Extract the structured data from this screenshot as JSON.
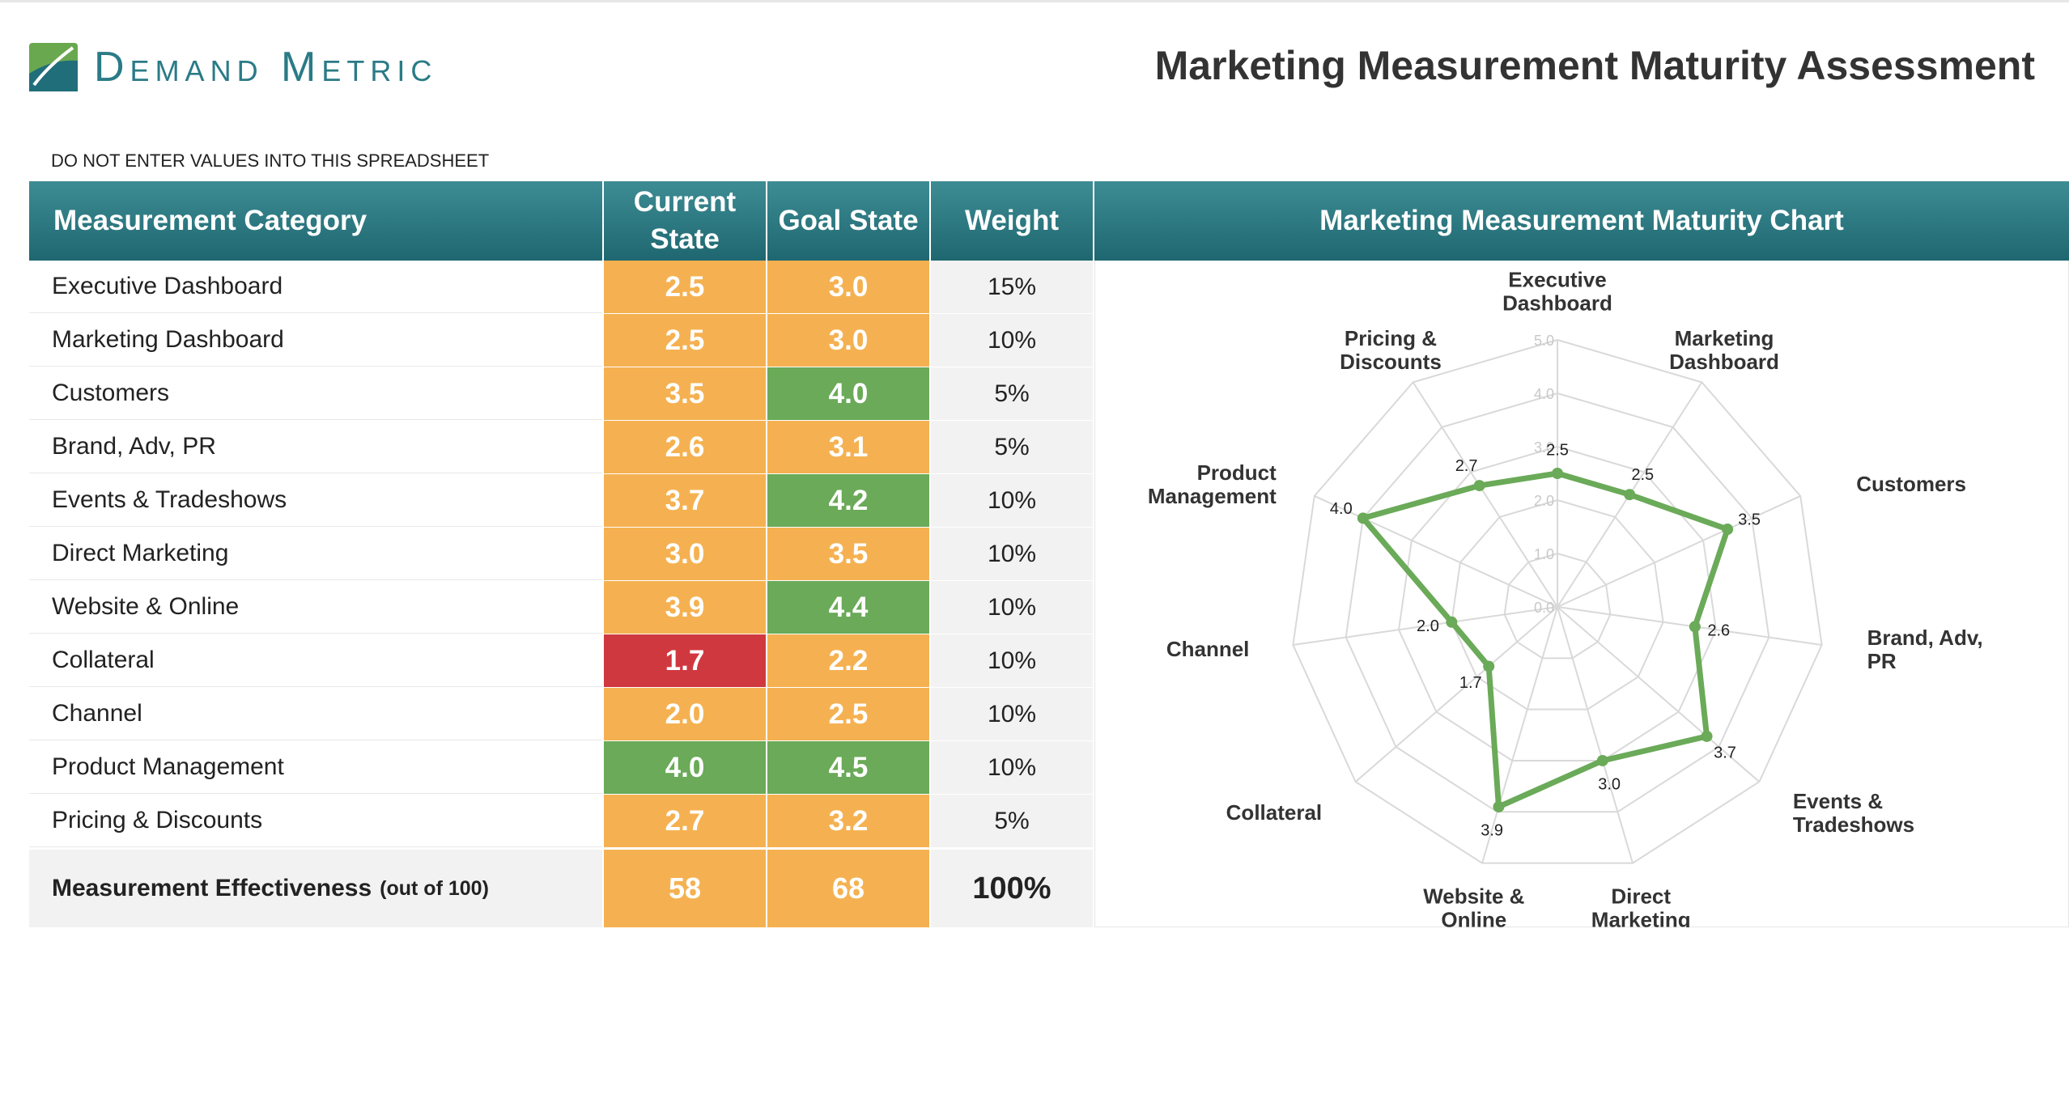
{
  "header": {
    "logo_text": "Demand Metric",
    "title": "Marketing Measurement Maturity Assessment",
    "notice": "DO NOT ENTER VALUES INTO THIS SPREADSHEET"
  },
  "table": {
    "col_category": "Measurement Category",
    "col_current": "Current State",
    "col_goal": "Goal State",
    "col_weight": "Weight",
    "col_chart": "Marketing Measurement Maturity Chart",
    "rows": [
      {
        "category": "Executive Dashboard",
        "current": "2.5",
        "goal": "3.0",
        "weight": "15%",
        "current_color": "#f5b151",
        "goal_color": "#f5b151"
      },
      {
        "category": "Marketing Dashboard",
        "current": "2.5",
        "goal": "3.0",
        "weight": "10%",
        "current_color": "#f5b151",
        "goal_color": "#f5b151"
      },
      {
        "category": "Customers",
        "current": "3.5",
        "goal": "4.0",
        "weight": "5%",
        "current_color": "#f5b151",
        "goal_color": "#6aaa58"
      },
      {
        "category": "Brand, Adv, PR",
        "current": "2.6",
        "goal": "3.1",
        "weight": "5%",
        "current_color": "#f5b151",
        "goal_color": "#f5b151"
      },
      {
        "category": "Events & Tradeshows",
        "current": "3.7",
        "goal": "4.2",
        "weight": "10%",
        "current_color": "#f5b151",
        "goal_color": "#6aaa58"
      },
      {
        "category": "Direct Marketing",
        "current": "3.0",
        "goal": "3.5",
        "weight": "10%",
        "current_color": "#f5b151",
        "goal_color": "#f5b151"
      },
      {
        "category": "Website & Online",
        "current": "3.9",
        "goal": "4.4",
        "weight": "10%",
        "current_color": "#f5b151",
        "goal_color": "#6aaa58"
      },
      {
        "category": "Collateral",
        "current": "1.7",
        "goal": "2.2",
        "weight": "10%",
        "current_color": "#d0383f",
        "goal_color": "#f5b151"
      },
      {
        "category": "Channel",
        "current": "2.0",
        "goal": "2.5",
        "weight": "10%",
        "current_color": "#f5b151",
        "goal_color": "#f5b151"
      },
      {
        "category": "Product Management",
        "current": "4.0",
        "goal": "4.5",
        "weight": "10%",
        "current_color": "#6aaa58",
        "goal_color": "#6aaa58"
      },
      {
        "category": "Pricing & Discounts",
        "current": "2.7",
        "goal": "3.2",
        "weight": "5%",
        "current_color": "#f5b151",
        "goal_color": "#f5b151"
      }
    ],
    "total": {
      "label": "Measurement Effectiveness",
      "sub": "(out of 100)",
      "current": "58",
      "goal": "68",
      "weight": "100%",
      "current_color": "#f5b151",
      "goal_color": "#f5b151"
    }
  },
  "chart_data": {
    "type": "radar",
    "title": "Marketing Measurement Maturity Chart",
    "categories": [
      "Executive Dashboard",
      "Marketing Dashboard",
      "Customers",
      "Brand, Adv, PR",
      "Events & Tradeshows",
      "Direct Marketing",
      "Website & Online",
      "Collateral",
      "Channel",
      "Product Management",
      "Pricing & Discounts"
    ],
    "axis_range": [
      0,
      5
    ],
    "ticks": [
      "0.0",
      "1.0",
      "2.0",
      "3.0",
      "4.0",
      "5.0"
    ],
    "series": [
      {
        "values": [
          2.5,
          2.5,
          3.5,
          2.6,
          3.7,
          3.0,
          3.9,
          1.7,
          2.0,
          4.0,
          2.7
        ],
        "labels": [
          "2.5",
          "2.5",
          "3.5",
          "2.6",
          "3.7",
          "3.0",
          "3.9",
          "1.7",
          "2.0",
          "4.0",
          "2.7"
        ],
        "color": "#6aaa58"
      }
    ]
  }
}
